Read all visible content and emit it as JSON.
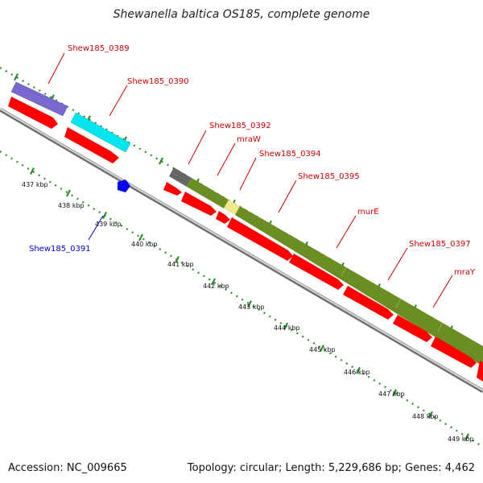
{
  "title": "Shewanella baltica OS185, complete genome",
  "footer": {
    "accession": "Accession: NC_009665",
    "summary": "Topology: circular; Length: 5,229,686 bp; Genes: 4,462"
  },
  "colors": {
    "plus_strand_label": "#cc0000",
    "minus_strand_label": "#0000cc",
    "cds": "#ff0000",
    "tick_mark": "#2e8b2e",
    "backbone": "#999999"
  },
  "ruler": {
    "labels": [
      "437 kbp",
      "438 kbp",
      "439 kbp",
      "440 kbp",
      "441 kbp",
      "442 kbp",
      "443 kbp",
      "444 kbp",
      "445 kbp",
      "446 kbp",
      "447 kbp",
      "448 kbp",
      "449 kbp"
    ]
  },
  "genes": [
    {
      "label": "Shew185_0389",
      "strand": "plus",
      "color": "#7b68cf"
    },
    {
      "label": "Shew185_0390",
      "strand": "plus",
      "color": "#00e5ee"
    },
    {
      "label": "Shew185_0391",
      "strand": "minus",
      "color": "#0000ee"
    },
    {
      "label": "Shew185_0392",
      "strand": "plus",
      "color": "#666666"
    },
    {
      "label": "mraW",
      "strand": "plus",
      "color": "#6b8e23"
    },
    {
      "label": "Shew185_0394",
      "strand": "plus",
      "color": "#f0e68c"
    },
    {
      "label": "Shew185_0395",
      "strand": "plus",
      "color": "#6b8e23"
    },
    {
      "label": "murE",
      "strand": "plus",
      "color": "#6b8e23"
    },
    {
      "label": "Shew185_0397",
      "strand": "plus",
      "color": "#6b8e23"
    },
    {
      "label": "mraY",
      "strand": "plus",
      "color": "#6b8e23"
    }
  ]
}
